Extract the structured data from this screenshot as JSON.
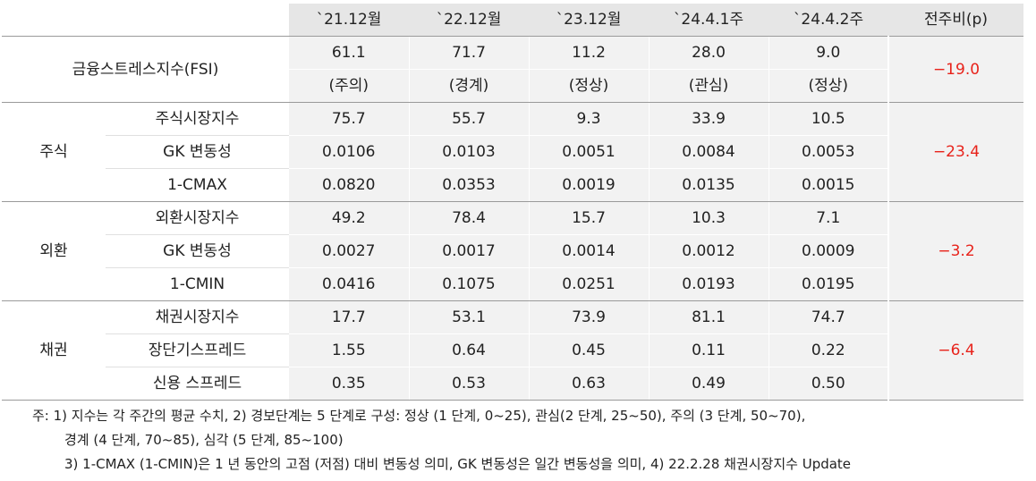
{
  "header": {
    "corner": "",
    "cols": [
      "`21.12월",
      "`22.12월",
      "`23.12월",
      "`24.4.1주",
      "`24.4.2주"
    ],
    "change": "전주비(p)"
  },
  "fsi": {
    "label": "금융스트레스지수(FSI)",
    "values": [
      "61.1",
      "71.7",
      "11.2",
      "28.0",
      "9.0"
    ],
    "stages": [
      "(주의)",
      "(경계)",
      "(정상)",
      "(관심)",
      "(정상)"
    ],
    "change": "−19.0"
  },
  "groups": [
    {
      "name": "주식",
      "change": "−23.4",
      "rows": [
        {
          "label": "주식시장지수",
          "values": [
            "75.7",
            "55.7",
            "9.3",
            "33.9",
            "10.5"
          ]
        },
        {
          "label": "GK 변동성",
          "values": [
            "0.0106",
            "0.0103",
            "0.0051",
            "0.0084",
            "0.0053"
          ]
        },
        {
          "label": "1-CMAX",
          "values": [
            "0.0820",
            "0.0353",
            "0.0019",
            "0.0135",
            "0.0015"
          ]
        }
      ]
    },
    {
      "name": "외환",
      "change": "−3.2",
      "rows": [
        {
          "label": "외환시장지수",
          "values": [
            "49.2",
            "78.4",
            "15.7",
            "10.3",
            "7.1"
          ]
        },
        {
          "label": "GK 변동성",
          "values": [
            "0.0027",
            "0.0017",
            "0.0014",
            "0.0012",
            "0.0009"
          ]
        },
        {
          "label": "1-CMIN",
          "values": [
            "0.0416",
            "0.1075",
            "0.0251",
            "0.0193",
            "0.0195"
          ]
        }
      ]
    },
    {
      "name": "채권",
      "change": "−6.4",
      "rows": [
        {
          "label": "채권시장지수",
          "values": [
            "17.7",
            "53.1",
            "73.9",
            "81.1",
            "74.7"
          ]
        },
        {
          "label": "장단기스프레드",
          "values": [
            "1.55",
            "0.64",
            "0.45",
            "0.11",
            "0.22"
          ]
        },
        {
          "label": "신용 스프레드",
          "values": [
            "0.35",
            "0.53",
            "0.63",
            "0.49",
            "0.50"
          ]
        }
      ]
    }
  ],
  "notes": [
    "주: 1) 지수는 각 주간의 평균 수치, 2) 경보단계는 5 단계로 구성: 정상 (1 단계, 0~25), 관심(2 단계, 25~50), 주의 (3 단계, 50~70),",
    "경계 (4 단계, 70~85), 심각 (5 단계, 85~100)",
    "3) 1-CMAX (1-CMIN)은 1 년 동안의 고점 (저점) 대비 변동성 의미, GK 변동성은 일간 변동성을 의미, 4) 22.2.28 채권시장지수 Update"
  ]
}
